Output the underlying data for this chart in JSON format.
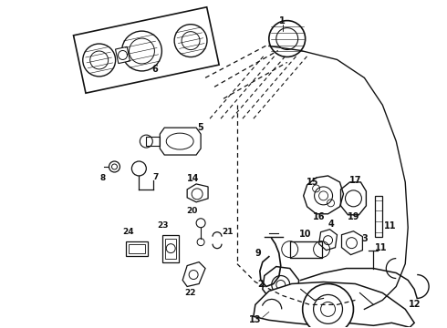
{
  "background_color": "#ffffff",
  "line_color": "#111111",
  "fig_width": 4.9,
  "fig_height": 3.6,
  "dpi": 100
}
